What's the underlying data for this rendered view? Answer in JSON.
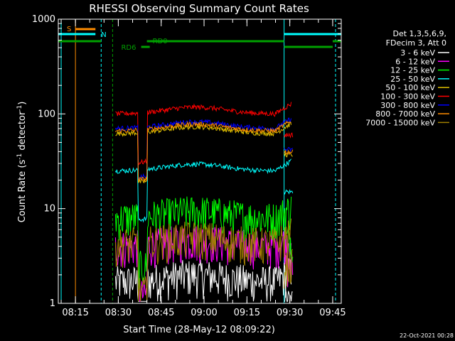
{
  "chart_data": {
    "type": "line",
    "title": "RHESSI Observing Summary Count Rates",
    "xlabel": "Start Time (28-May-12 08:09:22)",
    "ylabel": "Count Rate (s",
    "ylabel_sup": "-1",
    "ylabel_rest": " detector",
    "ylabel_tail": ")",
    "yscale": "log",
    "ylim": [
      1,
      1000
    ],
    "xlim": [
      "08:09",
      "09:48"
    ],
    "x_ticks": [
      "08:15",
      "08:30",
      "08:45",
      "09:00",
      "09:15",
      "09:30",
      "09:45"
    ],
    "y_ticks": [
      "1",
      "10",
      "100",
      "1000"
    ],
    "footer_date": "22-Oct-2021 00:28",
    "legend_header": [
      "Det 1,3,5,6,9,",
      "FDecim 3, Att 0"
    ],
    "legend_placement": "right",
    "flags": [
      {
        "label": "S",
        "color": "#ff8c00"
      },
      {
        "label": "N",
        "color": "#00ffff"
      },
      {
        "label": "RD0",
        "color": "#00a000"
      },
      {
        "label": "RD6",
        "color": "#00a000"
      }
    ],
    "series": [
      {
        "name": "3 - 6 keV",
        "color": "#ffffff",
        "level": 1.7
      },
      {
        "name": "6 - 12 keV",
        "color": "#ff00ff",
        "level": 4.0
      },
      {
        "name": "12 - 25 keV",
        "color": "#00ff00",
        "level": 8.0
      },
      {
        "name": "25 - 50 keV",
        "color": "#00ffff",
        "level": 25
      },
      {
        "name": "50 - 100 keV",
        "color": "#e0c000",
        "level": 62
      },
      {
        "name": "100 - 300 keV",
        "color": "#ff0000",
        "level": 100
      },
      {
        "name": "300 - 800 keV",
        "color": "#0000ff",
        "level": 70
      },
      {
        "name": "800 - 7000 keV",
        "color": "#ff8c00",
        "level": 66
      },
      {
        "name": "7000 - 15000 keV",
        "color": "#a08000",
        "level": 4.3
      }
    ]
  }
}
